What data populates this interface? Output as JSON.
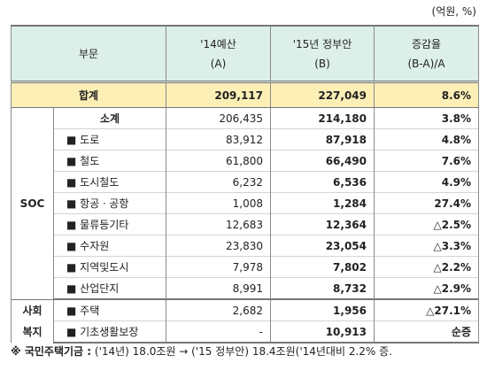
{
  "unit": "(억원, %)",
  "header": {
    "category": "부문",
    "col_a": [
      "'14예산",
      "(A)"
    ],
    "col_b": [
      "'15년 정부안",
      "(B)"
    ],
    "col_rate": [
      "증감율",
      "(B-A)/A"
    ]
  },
  "total": {
    "label": "합계",
    "a": "209,117",
    "b": "227,049",
    "rate": "8.6%"
  },
  "groups": [
    {
      "label": [
        "SOC"
      ],
      "rows": [
        {
          "label": "소계",
          "a": "206,435",
          "b": "214,180",
          "rate": "3.8%"
        },
        {
          "label": "■ 도로",
          "a": "83,912",
          "b": "87,918",
          "rate": "4.8%"
        },
        {
          "label": "■ 철도",
          "a": "61,800",
          "b": "66,490",
          "rate": "7.6%"
        },
        {
          "label": "■ 도시철도",
          "a": "6,232",
          "b": "6,536",
          "rate": "4.9%"
        },
        {
          "label": "■ 항공ㆍ공항",
          "a": "1,008",
          "b": "1,284",
          "rate": "27.4%"
        },
        {
          "label": "■ 물류등기타",
          "a": "12,683",
          "b": "12,364",
          "rate": "△2.5%"
        },
        {
          "label": "■ 수자원",
          "a": "23,830",
          "b": "23,054",
          "rate": "△3.3%"
        },
        {
          "label": "■ 지역및도시",
          "a": "7,978",
          "b": "7,802",
          "rate": "△2.2%"
        },
        {
          "label": "■ 산업단지",
          "a": "8,991",
          "b": "8,732",
          "rate": "△2.9%"
        }
      ]
    },
    {
      "label": [
        "사회",
        "복지"
      ],
      "rows": [
        {
          "label": "■ 주택",
          "a": "2,682",
          "b": "1,956",
          "rate": "△27.1%"
        },
        {
          "label": "■ 기초생활보장",
          "a": "-",
          "b": "10,913",
          "rate": "순증"
        }
      ]
    }
  ],
  "footnote": {
    "label": "※ 국민주택기금 :",
    "text": "('14년) 18.0조원 → ('15 정부안) 18.4조원('14년대비 2.2% 증."
  }
}
